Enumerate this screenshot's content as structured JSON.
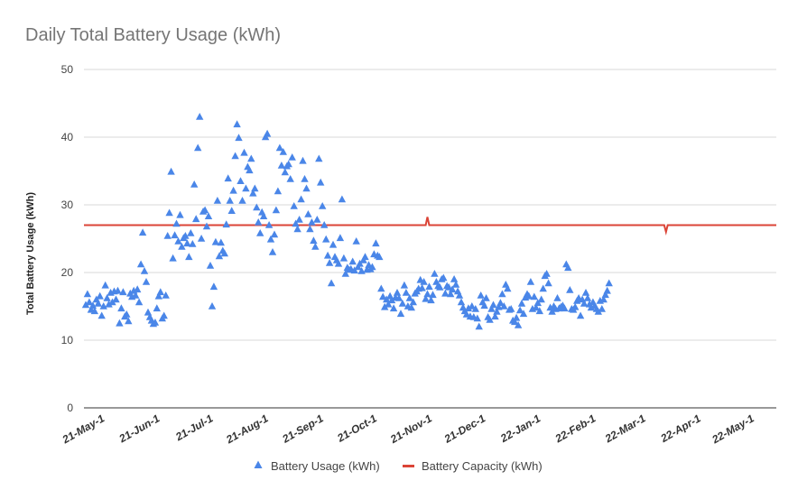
{
  "chart_data": {
    "type": "scatter",
    "title": "Daily Total Battery Usage (kWh)",
    "xlabel": "",
    "ylabel": "Total Battery Usage (kWh)",
    "ylim": [
      0,
      50
    ],
    "yticks": [
      "0",
      "10",
      "20",
      "30",
      "40",
      "50"
    ],
    "grid": "horizontal",
    "legend_position": "bottom",
    "x_tick_labels": [
      {
        "label": "21-May-1",
        "day": 0
      },
      {
        "label": "21-Jun-1",
        "day": 31
      },
      {
        "label": "21-Jul-1",
        "day": 61
      },
      {
        "label": "21-Aug-1",
        "day": 92
      },
      {
        "label": "21-Sep-1",
        "day": 123
      },
      {
        "label": "21-Oct-1",
        "day": 153
      },
      {
        "label": "21-Nov-1",
        "day": 184
      },
      {
        "label": "21-Dec-1",
        "day": 214
      },
      {
        "label": "22-Jan-1",
        "day": 245
      },
      {
        "label": "22-Feb-1",
        "day": 276
      },
      {
        "label": "22-Mar-1",
        "day": 304
      },
      {
        "label": "22-Apr-1",
        "day": 335
      },
      {
        "label": "22-May-1",
        "day": 365
      }
    ],
    "xlim": [
      -12,
      377
    ],
    "series": [
      {
        "name": "Battery Usage (kWh)",
        "marker": "triangle",
        "color": "#4a86e8",
        "points": [
          [
            -11,
            15.2
          ],
          [
            -10,
            16.8
          ],
          [
            -9,
            15.6
          ],
          [
            -8,
            14.5
          ],
          [
            -7,
            15.1
          ],
          [
            -6,
            14.3
          ],
          [
            -5,
            16.0
          ],
          [
            -4,
            15.4
          ],
          [
            -3,
            16.5
          ],
          [
            -2,
            13.6
          ],
          [
            -1,
            15.0
          ],
          [
            0,
            18.1
          ],
          [
            1,
            16.2
          ],
          [
            2,
            15.3
          ],
          [
            3,
            17.0
          ],
          [
            4,
            15.6
          ],
          [
            5,
            17.2
          ],
          [
            6,
            16.0
          ],
          [
            7,
            17.3
          ],
          [
            8,
            12.5
          ],
          [
            9,
            14.7
          ],
          [
            10,
            17.1
          ],
          [
            11,
            13.5
          ],
          [
            12,
            13.8
          ],
          [
            13,
            12.8
          ],
          [
            14,
            16.9
          ],
          [
            15,
            16.4
          ],
          [
            16,
            17.3
          ],
          [
            17,
            16.6
          ],
          [
            18,
            17.5
          ],
          [
            19,
            15.6
          ],
          [
            20,
            21.2
          ],
          [
            21,
            25.9
          ],
          [
            22,
            20.2
          ],
          [
            23,
            18.6
          ],
          [
            24,
            14.1
          ],
          [
            25,
            13.4
          ],
          [
            26,
            12.9
          ],
          [
            27,
            12.4
          ],
          [
            28,
            12.6
          ],
          [
            29,
            14.7
          ],
          [
            30,
            16.5
          ],
          [
            31,
            17.1
          ],
          [
            32,
            13.2
          ],
          [
            33,
            13.6
          ],
          [
            34,
            16.6
          ],
          [
            35,
            25.4
          ],
          [
            36,
            28.8
          ],
          [
            37,
            34.9
          ],
          [
            38,
            22.1
          ],
          [
            39,
            25.5
          ],
          [
            40,
            27.2
          ],
          [
            41,
            24.6
          ],
          [
            42,
            28.5
          ],
          [
            43,
            23.8
          ],
          [
            44,
            25.1
          ],
          [
            45,
            25.4
          ],
          [
            46,
            24.3
          ],
          [
            47,
            22.3
          ],
          [
            48,
            25.8
          ],
          [
            49,
            24.2
          ],
          [
            50,
            33.0
          ],
          [
            51,
            27.9
          ],
          [
            52,
            38.4
          ],
          [
            53,
            43.0
          ],
          [
            54,
            25.0
          ],
          [
            55,
            29.0
          ],
          [
            56,
            29.2
          ],
          [
            57,
            26.8
          ],
          [
            58,
            28.3
          ],
          [
            59,
            21.0
          ],
          [
            60,
            15.0
          ],
          [
            61,
            17.9
          ],
          [
            62,
            24.5
          ],
          [
            63,
            30.6
          ],
          [
            64,
            22.4
          ],
          [
            65,
            24.4
          ],
          [
            66,
            23.2
          ],
          [
            67,
            22.8
          ],
          [
            68,
            27.1
          ],
          [
            69,
            33.9
          ],
          [
            70,
            30.6
          ],
          [
            71,
            29.1
          ],
          [
            72,
            32.1
          ],
          [
            73,
            37.2
          ],
          [
            74,
            41.9
          ],
          [
            75,
            39.9
          ],
          [
            76,
            33.5
          ],
          [
            77,
            30.6
          ],
          [
            78,
            37.7
          ],
          [
            79,
            32.4
          ],
          [
            80,
            35.6
          ],
          [
            81,
            35.1
          ],
          [
            82,
            36.8
          ],
          [
            83,
            31.7
          ],
          [
            84,
            32.4
          ],
          [
            85,
            29.6
          ],
          [
            86,
            27.4
          ],
          [
            87,
            25.8
          ],
          [
            88,
            28.9
          ],
          [
            89,
            28.3
          ],
          [
            90,
            40.0
          ],
          [
            91,
            40.5
          ],
          [
            92,
            27.0
          ],
          [
            93,
            24.9
          ],
          [
            94,
            23.0
          ],
          [
            95,
            25.6
          ],
          [
            96,
            29.2
          ],
          [
            97,
            32.0
          ],
          [
            98,
            38.4
          ],
          [
            99,
            35.8
          ],
          [
            100,
            37.8
          ],
          [
            101,
            34.8
          ],
          [
            102,
            35.7
          ],
          [
            103,
            36.0
          ],
          [
            104,
            33.8
          ],
          [
            105,
            37.0
          ],
          [
            106,
            29.8
          ],
          [
            107,
            27.2
          ],
          [
            108,
            26.4
          ],
          [
            109,
            27.8
          ],
          [
            110,
            30.8
          ],
          [
            111,
            36.5
          ],
          [
            112,
            33.8
          ],
          [
            113,
            32.4
          ],
          [
            114,
            28.6
          ],
          [
            115,
            26.4
          ],
          [
            116,
            27.4
          ],
          [
            117,
            24.7
          ],
          [
            118,
            23.8
          ],
          [
            119,
            27.8
          ],
          [
            120,
            36.8
          ],
          [
            121,
            33.3
          ],
          [
            122,
            29.8
          ],
          [
            123,
            27.0
          ],
          [
            124,
            24.9
          ],
          [
            125,
            22.5
          ],
          [
            126,
            21.4
          ],
          [
            127,
            18.4
          ],
          [
            128,
            24.1
          ],
          [
            129,
            22.3
          ],
          [
            130,
            21.8
          ],
          [
            131,
            21.3
          ],
          [
            132,
            25.1
          ],
          [
            133,
            30.8
          ],
          [
            134,
            22.1
          ],
          [
            135,
            19.8
          ],
          [
            136,
            20.7
          ],
          [
            137,
            20.4
          ],
          [
            138,
            20.5
          ],
          [
            139,
            21.6
          ],
          [
            140,
            20.3
          ],
          [
            141,
            24.6
          ],
          [
            142,
            20.8
          ],
          [
            143,
            21.3
          ],
          [
            144,
            20.2
          ],
          [
            145,
            21.8
          ],
          [
            146,
            22.3
          ],
          [
            147,
            20.4
          ],
          [
            148,
            21.1
          ],
          [
            149,
            20.5
          ],
          [
            150,
            20.8
          ],
          [
            151,
            22.7
          ],
          [
            152,
            24.3
          ],
          [
            153,
            22.5
          ],
          [
            154,
            22.3
          ],
          [
            155,
            17.6
          ],
          [
            156,
            16.4
          ],
          [
            157,
            14.9
          ],
          [
            158,
            16.0
          ],
          [
            159,
            15.3
          ],
          [
            160,
            16.5
          ],
          [
            161,
            15.9
          ],
          [
            162,
            14.7
          ],
          [
            163,
            16.3
          ],
          [
            164,
            17.0
          ],
          [
            165,
            16.2
          ],
          [
            166,
            13.9
          ],
          [
            167,
            15.4
          ],
          [
            168,
            18.1
          ],
          [
            169,
            17.0
          ],
          [
            170,
            15.0
          ],
          [
            171,
            16.2
          ],
          [
            172,
            14.8
          ],
          [
            173,
            15.6
          ],
          [
            174,
            16.9
          ],
          [
            175,
            17.2
          ],
          [
            176,
            17.6
          ],
          [
            177,
            18.9
          ],
          [
            178,
            17.7
          ],
          [
            179,
            18.6
          ],
          [
            180,
            16.1
          ],
          [
            181,
            16.8
          ],
          [
            182,
            17.9
          ],
          [
            183,
            15.9
          ],
          [
            184,
            16.7
          ],
          [
            185,
            19.8
          ],
          [
            186,
            18.6
          ],
          [
            187,
            18.0
          ],
          [
            188,
            17.8
          ],
          [
            189,
            19.0
          ],
          [
            190,
            19.2
          ],
          [
            191,
            16.9
          ],
          [
            192,
            18.0
          ],
          [
            193,
            17.8
          ],
          [
            194,
            16.8
          ],
          [
            195,
            17.5
          ],
          [
            196,
            19.0
          ],
          [
            197,
            18.2
          ],
          [
            198,
            17.2
          ],
          [
            199,
            16.6
          ],
          [
            200,
            15.6
          ],
          [
            201,
            14.8
          ],
          [
            202,
            14.3
          ],
          [
            203,
            13.8
          ],
          [
            204,
            14.7
          ],
          [
            205,
            13.5
          ],
          [
            206,
            15.0
          ],
          [
            207,
            13.4
          ],
          [
            208,
            14.6
          ],
          [
            209,
            13.2
          ],
          [
            210,
            12.0
          ],
          [
            211,
            16.6
          ],
          [
            212,
            15.6
          ],
          [
            213,
            15.1
          ],
          [
            214,
            16.2
          ],
          [
            215,
            13.4
          ],
          [
            216,
            13.0
          ],
          [
            217,
            14.6
          ],
          [
            218,
            15.2
          ],
          [
            219,
            13.5
          ],
          [
            220,
            14.2
          ],
          [
            221,
            14.9
          ],
          [
            222,
            15.5
          ],
          [
            223,
            16.8
          ],
          [
            224,
            15.0
          ],
          [
            225,
            18.2
          ],
          [
            226,
            17.6
          ],
          [
            227,
            14.5
          ],
          [
            228,
            14.6
          ],
          [
            229,
            12.9
          ],
          [
            230,
            12.7
          ],
          [
            231,
            13.3
          ],
          [
            232,
            12.2
          ],
          [
            233,
            14.4
          ],
          [
            234,
            15.4
          ],
          [
            235,
            13.9
          ],
          [
            236,
            16.3
          ],
          [
            237,
            16.8
          ],
          [
            238,
            16.5
          ],
          [
            239,
            18.6
          ],
          [
            240,
            14.6
          ],
          [
            241,
            16.4
          ],
          [
            242,
            14.8
          ],
          [
            243,
            15.5
          ],
          [
            244,
            14.3
          ],
          [
            245,
            16.0
          ],
          [
            246,
            17.6
          ],
          [
            247,
            19.5
          ],
          [
            248,
            19.8
          ],
          [
            249,
            18.4
          ],
          [
            250,
            14.8
          ],
          [
            251,
            14.2
          ],
          [
            252,
            15.0
          ],
          [
            253,
            14.6
          ],
          [
            254,
            16.2
          ],
          [
            255,
            14.7
          ],
          [
            256,
            14.9
          ],
          [
            257,
            15.1
          ],
          [
            258,
            14.7
          ],
          [
            259,
            21.2
          ],
          [
            260,
            20.7
          ],
          [
            261,
            17.4
          ],
          [
            262,
            14.6
          ],
          [
            263,
            14.5
          ],
          [
            264,
            14.9
          ],
          [
            265,
            15.8
          ],
          [
            266,
            16.2
          ],
          [
            267,
            13.6
          ],
          [
            268,
            16.0
          ],
          [
            269,
            15.4
          ],
          [
            270,
            17.0
          ],
          [
            271,
            16.2
          ],
          [
            272,
            15.3
          ],
          [
            273,
            14.8
          ],
          [
            274,
            15.6
          ],
          [
            275,
            15.1
          ],
          [
            276,
            14.6
          ],
          [
            277,
            14.2
          ],
          [
            278,
            15.8
          ],
          [
            279,
            14.6
          ],
          [
            280,
            16.0
          ],
          [
            281,
            16.7
          ],
          [
            282,
            17.3
          ],
          [
            283,
            18.4
          ]
        ]
      },
      {
        "name": "Battery Capacity (kWh)",
        "type": "line",
        "color": "#db4437",
        "points": [
          [
            -12,
            27
          ],
          [
            180,
            27
          ],
          [
            181,
            28.2
          ],
          [
            182,
            27
          ],
          [
            314,
            27
          ],
          [
            315,
            26.0
          ],
          [
            316,
            27
          ],
          [
            377,
            27
          ]
        ]
      }
    ]
  }
}
